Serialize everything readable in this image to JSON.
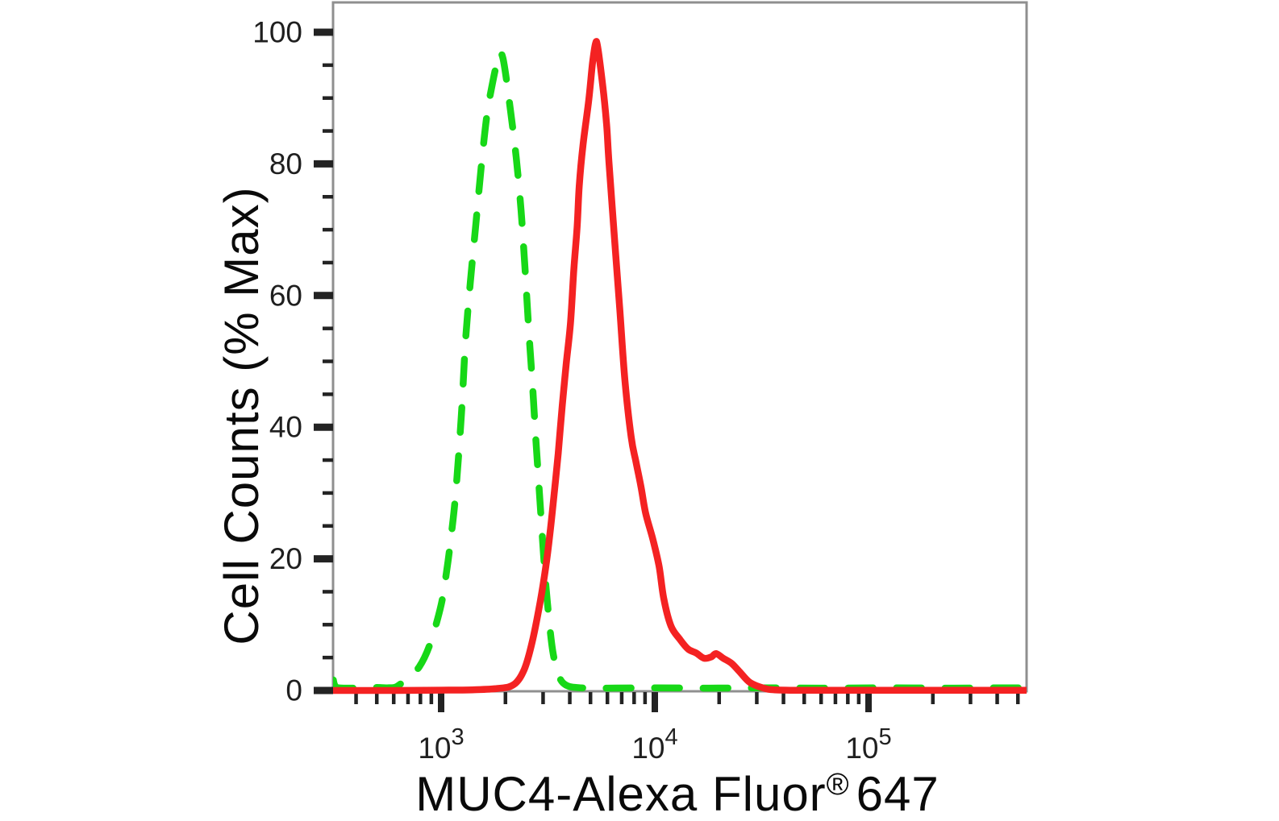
{
  "figure": {
    "background": "#ffffff",
    "frame_color": "#8f8f8f",
    "tick_color": "#232323",
    "text_color": "#0a0a0a"
  },
  "chart_data": {
    "type": "line",
    "subtype": "flow-cytometry-histogram-overlay",
    "title": "",
    "xlabel": {
      "full": "MUC4-Alexa Fluor® 647",
      "text": "MUC4-Alexa Fluor",
      "registered_symbol": "®",
      "suffix": "647"
    },
    "ylabel": "Cell Counts (% Max)",
    "x_scale": "log10",
    "x_range": [
      310,
      560000
    ],
    "y_range": [
      0,
      104.5
    ],
    "grid": false,
    "legend": "none",
    "x_axis": {
      "major_ticks": [
        {
          "value": 1000,
          "base": "10",
          "exponent": "3"
        },
        {
          "value": 10000,
          "base": "10",
          "exponent": "4"
        },
        {
          "value": 100000,
          "base": "10",
          "exponent": "5"
        }
      ],
      "minor_ticks": [
        400,
        500,
        600,
        700,
        800,
        900,
        2000,
        3000,
        4000,
        5000,
        6000,
        7000,
        8000,
        9000,
        20000,
        30000,
        40000,
        50000,
        60000,
        70000,
        80000,
        90000,
        200000,
        300000,
        400000,
        500000
      ]
    },
    "y_axis": {
      "major_ticks": [
        {
          "value": 0,
          "label": "0"
        },
        {
          "value": 20,
          "label": "20"
        },
        {
          "value": 40,
          "label": "40"
        },
        {
          "value": 60,
          "label": "60"
        },
        {
          "value": 80,
          "label": "80"
        },
        {
          "value": 100,
          "label": "100"
        }
      ],
      "minor_ticks": [
        5,
        10,
        15,
        25,
        30,
        35,
        45,
        50,
        55,
        65,
        70,
        75,
        85,
        90,
        95
      ]
    },
    "series": [
      {
        "name": "green-dashed-curve",
        "color": "#17d817",
        "line_style": "dashed",
        "peak": {
          "x": 1870,
          "y": 96.8
        },
        "points": [
          [
            313,
            1.6
          ],
          [
            318,
            0.8
          ],
          [
            330,
            0.4
          ],
          [
            380,
            0.35
          ],
          [
            440,
            0.4
          ],
          [
            500,
            0.45
          ],
          [
            560,
            0.4
          ],
          [
            620,
            0.6
          ],
          [
            700,
            2
          ],
          [
            790,
            3.6
          ],
          [
            886,
            7
          ],
          [
            1000,
            13
          ],
          [
            1060,
            18
          ],
          [
            1110,
            23
          ],
          [
            1170,
            30
          ],
          [
            1245,
            42
          ],
          [
            1300,
            53
          ],
          [
            1370,
            62
          ],
          [
            1455,
            71
          ],
          [
            1545,
            80
          ],
          [
            1640,
            87.5
          ],
          [
            1745,
            92.5
          ],
          [
            1860,
            96.5
          ],
          [
            1910,
            96.8
          ],
          [
            1975,
            95
          ],
          [
            2095,
            89
          ],
          [
            2245,
            81
          ],
          [
            2365,
            73
          ],
          [
            2470,
            64
          ],
          [
            2580,
            54
          ],
          [
            2670,
            47
          ],
          [
            2765,
            39
          ],
          [
            2885,
            30
          ],
          [
            3010,
            21
          ],
          [
            3140,
            13.5
          ],
          [
            3330,
            6
          ],
          [
            3560,
            2.2
          ],
          [
            3850,
            0.8
          ],
          [
            4500,
            0.4
          ],
          [
            6000,
            0.35
          ],
          [
            10000,
            0.4
          ],
          [
            18000,
            0.35
          ],
          [
            30000,
            0.4
          ],
          [
            60000,
            0.35
          ],
          [
            120000,
            0.4
          ],
          [
            250000,
            0.35
          ],
          [
            430000,
            0.4
          ],
          [
            560000,
            0.4
          ]
        ]
      },
      {
        "name": "red-solid-curve",
        "color": "#f42222",
        "line_style": "solid",
        "peak": {
          "x": 5280,
          "y": 98.3
        },
        "points": [
          [
            313,
            0
          ],
          [
            600,
            0
          ],
          [
            1000,
            0.05
          ],
          [
            1400,
            0.1
          ],
          [
            1840,
            0.3
          ],
          [
            2190,
            0.9
          ],
          [
            2450,
            3.2
          ],
          [
            2670,
            7.4
          ],
          [
            2910,
            13.5
          ],
          [
            3090,
            18.8
          ],
          [
            3230,
            23.8
          ],
          [
            3380,
            29.9
          ],
          [
            3530,
            36
          ],
          [
            3690,
            43.4
          ],
          [
            3850,
            49.6
          ],
          [
            4030,
            55.8
          ],
          [
            4180,
            64
          ],
          [
            4330,
            70.5
          ],
          [
            4430,
            76.7
          ],
          [
            4610,
            82.8
          ],
          [
            4900,
            89.5
          ],
          [
            5110,
            95.3
          ],
          [
            5280,
            98.3
          ],
          [
            5400,
            97.8
          ],
          [
            5700,
            92
          ],
          [
            5950,
            86
          ],
          [
            6100,
            80.3
          ],
          [
            6500,
            68
          ],
          [
            6850,
            58
          ],
          [
            7250,
            47
          ],
          [
            7750,
            38.5
          ],
          [
            8150,
            34.8
          ],
          [
            8600,
            31.1
          ],
          [
            9050,
            27
          ],
          [
            9800,
            22.9
          ],
          [
            10480,
            18.8
          ],
          [
            11020,
            13.9
          ],
          [
            11900,
            9.8
          ],
          [
            13080,
            7.8
          ],
          [
            14300,
            6.3
          ],
          [
            15600,
            5.7
          ],
          [
            17000,
            4.9
          ],
          [
            18380,
            5.1
          ],
          [
            19350,
            5.6
          ],
          [
            20900,
            4.9
          ],
          [
            22900,
            4.1
          ],
          [
            25000,
            2.8
          ],
          [
            27900,
            1.2
          ],
          [
            32300,
            0.35
          ],
          [
            36500,
            0.1
          ],
          [
            50000,
            0.02
          ],
          [
            100000,
            0.02
          ],
          [
            300000,
            0.02
          ],
          [
            560000,
            0.02
          ]
        ]
      }
    ]
  }
}
